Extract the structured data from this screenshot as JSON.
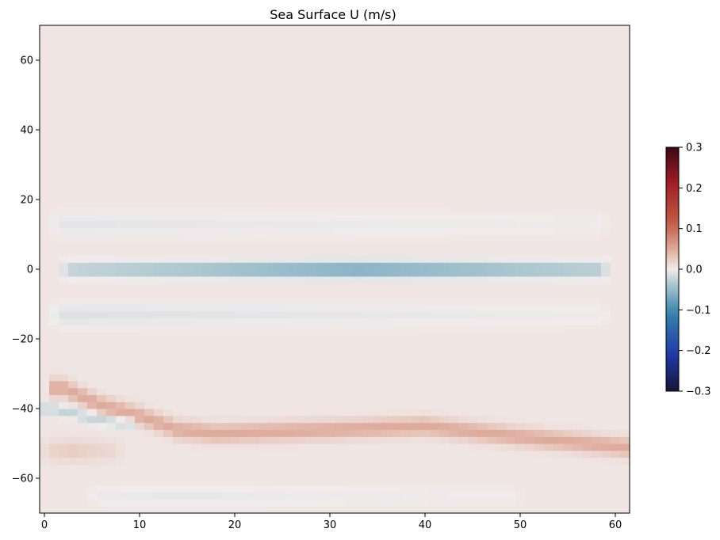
{
  "chart_data": {
    "type": "heatmap",
    "title": "Sea Surface U (m/s)",
    "xlabel": "",
    "ylabel": "",
    "xlim": [
      -0.5,
      61.5
    ],
    "ylim": [
      -70,
      70
    ],
    "x_ticks": [
      0,
      10,
      20,
      30,
      40,
      50,
      60
    ],
    "y_ticks": [
      -60,
      -40,
      -20,
      0,
      20,
      40,
      60
    ],
    "x_tick_labels": [
      "0",
      "10",
      "20",
      "30",
      "40",
      "50",
      "60"
    ],
    "y_tick_labels": [
      "−60",
      "−40",
      "−20",
      "0",
      "20",
      "40",
      "60"
    ],
    "colormap": "balance (diverging: navy – blue – light gray – red – dark red)",
    "colorbar": {
      "vmin": -0.3,
      "vmax": 0.3,
      "ticks": [
        -0.3,
        -0.2,
        -0.1,
        0.0,
        0.1,
        0.2,
        0.3
      ],
      "tick_labels": [
        "−0.3",
        "−0.2",
        "−0.1",
        "0.0",
        "0.1",
        "0.2",
        "0.3"
      ]
    },
    "grid": false,
    "background_value": 0.005,
    "features": [
      {
        "kind": "zonal_band",
        "y_center": 0,
        "y_half_width": 2.2,
        "x_start": 2,
        "x_end": 59,
        "peak_value": -0.075,
        "peak_x": 33
      },
      {
        "kind": "zonal_band",
        "y_center": 13,
        "y_half_width": 3,
        "x_start": 1,
        "x_end": 59,
        "peak_value": -0.012,
        "peak_x": 3
      },
      {
        "kind": "zonal_band",
        "y_center": -13,
        "y_half_width": 3,
        "x_start": 1,
        "x_end": 59,
        "peak_value": -0.015,
        "peak_x": 3
      },
      {
        "kind": "curved_band",
        "points": [
          [
            2,
            -34
          ],
          [
            6,
            -39
          ],
          [
            10,
            -42
          ],
          [
            14,
            -46
          ],
          [
            18,
            -47
          ],
          [
            30,
            -46
          ],
          [
            40,
            -45
          ],
          [
            50,
            -48
          ],
          [
            61,
            -51
          ]
        ],
        "y_half_width": 2.5,
        "peak_value": 0.045
      },
      {
        "kind": "curved_band",
        "points": [
          [
            1,
            -40
          ],
          [
            4,
            -42
          ],
          [
            8,
            -44
          ]
        ],
        "y_half_width": 1.5,
        "peak_value": -0.03
      },
      {
        "kind": "zonal_band",
        "y_center": -52,
        "y_half_width": 3,
        "x_start": 0,
        "x_end": 8,
        "peak_value": 0.02,
        "peak_x": 3
      },
      {
        "kind": "zonal_band",
        "y_center": -65,
        "y_half_width": 2.5,
        "x_start": 5,
        "x_end": 50,
        "peak_value": -0.01,
        "peak_x": 15
      }
    ]
  }
}
